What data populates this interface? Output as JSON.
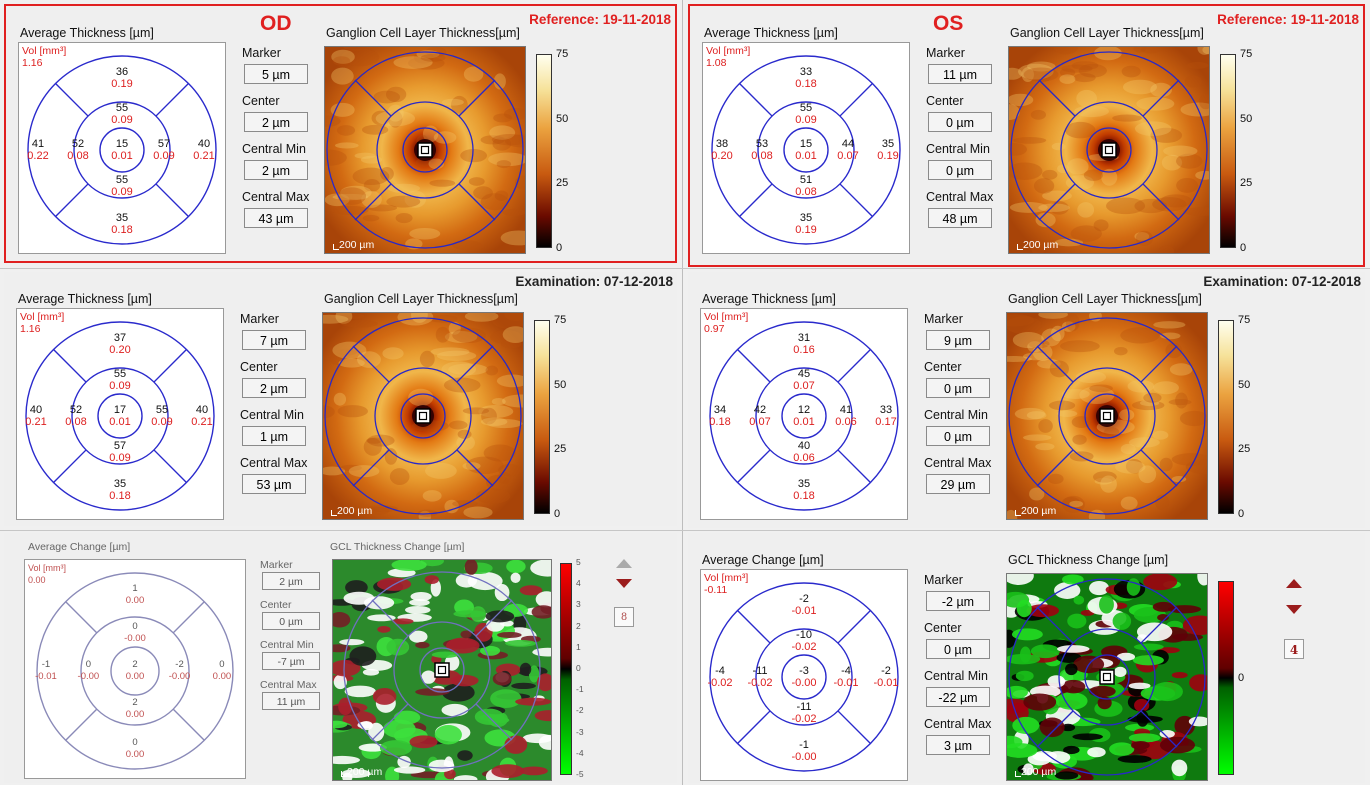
{
  "od_label": "OD",
  "os_label": "OS",
  "reference_date": "Reference: 19-11-2018",
  "exam_date": "Examination: 07-12-2018",
  "labels": {
    "avg_thickness": "Average Thickness [µm]",
    "gcl_thickness": "Ganglion Cell Layer Thickness[µm]",
    "avg_change": "Average Change [µm]",
    "gcl_change": "GCL Thickness Change [µm]",
    "marker": "Marker",
    "center": "Center",
    "central_min": "Central Min",
    "central_max": "Central Max",
    "vol": "Vol [mm³]",
    "scale": "200 µm"
  },
  "colorbar": {
    "thickness_ticks": [
      "75",
      "50",
      "25",
      "0"
    ],
    "od_change_ticks": [
      "5",
      "4",
      "3",
      "2",
      "1",
      "0",
      "-1",
      "-2",
      "-3",
      "-4",
      "-5"
    ],
    "os_change_ticks": [
      "0"
    ]
  },
  "colors": {
    "accent_red": "#e02020",
    "grid_blue": "#2a2acc",
    "grid_dim": "#8a8ab8",
    "change_red": "#c00000",
    "change_green": "#19c019"
  },
  "panels": {
    "od_ref": {
      "vol": "1.16",
      "sectors": {
        "outer_top": [
          "36",
          "0.19"
        ],
        "inner_top": [
          "55",
          "0.09"
        ],
        "outer_left": [
          "41",
          "0.22"
        ],
        "inner_left": [
          "52",
          "0.08"
        ],
        "center": [
          "15",
          "0.01"
        ],
        "inner_right": [
          "57",
          "0.09"
        ],
        "outer_right": [
          "40",
          "0.21"
        ],
        "inner_bottom": [
          "55",
          "0.09"
        ],
        "outer_bottom": [
          "35",
          "0.18"
        ]
      },
      "marker": "5 µm",
      "center": "2 µm",
      "central_min": "2 µm",
      "central_max": "43 µm"
    },
    "os_ref": {
      "vol": "1.08",
      "sectors": {
        "outer_top": [
          "33",
          "0.18"
        ],
        "inner_top": [
          "55",
          "0.09"
        ],
        "outer_left": [
          "38",
          "0.20"
        ],
        "inner_left": [
          "53",
          "0.08"
        ],
        "center": [
          "15",
          "0.01"
        ],
        "inner_right": [
          "44",
          "0.07"
        ],
        "outer_right": [
          "35",
          "0.19"
        ],
        "inner_bottom": [
          "51",
          "0.08"
        ],
        "outer_bottom": [
          "35",
          "0.19"
        ]
      },
      "marker": "11 µm",
      "center": "0 µm",
      "central_min": "0 µm",
      "central_max": "48 µm"
    },
    "od_exam": {
      "vol": "1.16",
      "sectors": {
        "outer_top": [
          "37",
          "0.20"
        ],
        "inner_top": [
          "55",
          "0.09"
        ],
        "outer_left": [
          "40",
          "0.21"
        ],
        "inner_left": [
          "52",
          "0.08"
        ],
        "center": [
          "17",
          "0.01"
        ],
        "inner_right": [
          "55",
          "0.09"
        ],
        "outer_right": [
          "40",
          "0.21"
        ],
        "inner_bottom": [
          "57",
          "0.09"
        ],
        "outer_bottom": [
          "35",
          "0.18"
        ]
      },
      "marker": "7 µm",
      "center": "2 µm",
      "central_min": "1 µm",
      "central_max": "53 µm"
    },
    "os_exam": {
      "vol": "0.97",
      "sectors": {
        "outer_top": [
          "31",
          "0.16"
        ],
        "inner_top": [
          "45",
          "0.07"
        ],
        "outer_left": [
          "34",
          "0.18"
        ],
        "inner_left": [
          "42",
          "0.07"
        ],
        "center": [
          "12",
          "0.01"
        ],
        "inner_right": [
          "41",
          "0.06"
        ],
        "outer_right": [
          "33",
          "0.17"
        ],
        "inner_bottom": [
          "40",
          "0.06"
        ],
        "outer_bottom": [
          "35",
          "0.18"
        ]
      },
      "marker": "9 µm",
      "center": "0 µm",
      "central_min": "0 µm",
      "central_max": "29 µm"
    },
    "od_change": {
      "vol": "0.00",
      "sectors": {
        "outer_top": [
          "1",
          "0.00"
        ],
        "inner_top": [
          "0",
          "-0.00"
        ],
        "outer_left": [
          "-1",
          "-0.01"
        ],
        "inner_left": [
          "0",
          "-0.00"
        ],
        "center": [
          "2",
          "0.00"
        ],
        "inner_right": [
          "-2",
          "-0.00"
        ],
        "outer_right": [
          "0",
          "0.00"
        ],
        "inner_bottom": [
          "2",
          "0.00"
        ],
        "outer_bottom": [
          "0",
          "0.00"
        ]
      },
      "marker": "2 µm",
      "center": "0 µm",
      "central_min": "-7 µm",
      "central_max": "11 µm",
      "counter": "8"
    },
    "os_change": {
      "vol": "-0.11",
      "sectors": {
        "outer_top": [
          "-2",
          "-0.01"
        ],
        "inner_top": [
          "-10",
          "-0.02"
        ],
        "outer_left": [
          "-4",
          "-0.02"
        ],
        "inner_left": [
          "-11",
          "-0.02"
        ],
        "center": [
          "-3",
          "-0.00"
        ],
        "inner_right": [
          "-4",
          "-0.01"
        ],
        "outer_right": [
          "-2",
          "-0.01"
        ],
        "inner_bottom": [
          "-11",
          "-0.02"
        ],
        "outer_bottom": [
          "-1",
          "-0.00"
        ]
      },
      "marker": "-2 µm",
      "center": "0 µm",
      "central_min": "-22 µm",
      "central_max": "3 µm",
      "counter": "4"
    }
  }
}
